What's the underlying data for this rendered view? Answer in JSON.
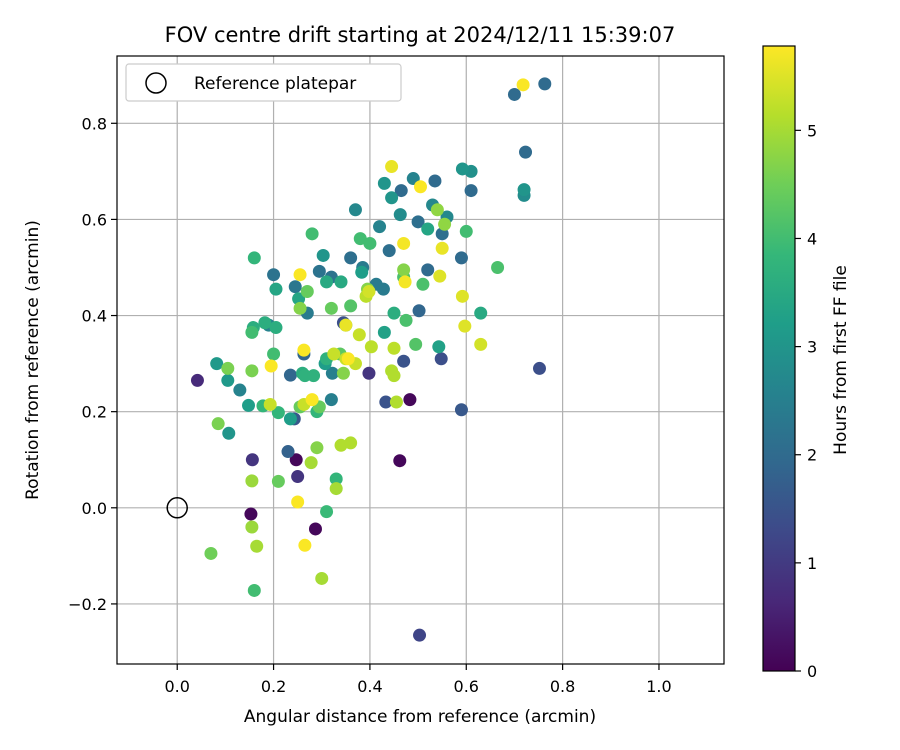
{
  "chart_data": {
    "type": "scatter",
    "title": "FOV centre drift starting at 2024/12/11 15:39:07",
    "xlabel": "Angular distance from reference (arcmin)",
    "ylabel": "Rotation from reference (arcmin)",
    "xlim": [
      -0.125,
      1.135
    ],
    "ylim": [
      -0.325,
      0.94
    ],
    "x_ticks": [
      0.0,
      0.2,
      0.4,
      0.6,
      0.8,
      1.0
    ],
    "x_tick_labels": [
      "0.0",
      "0.2",
      "0.4",
      "0.6",
      "0.8",
      "1.0"
    ],
    "y_ticks": [
      -0.2,
      0.0,
      0.2,
      0.4,
      0.6,
      0.8
    ],
    "y_tick_labels": [
      "−0.2",
      "0.0",
      "0.2",
      "0.4",
      "0.6",
      "0.8"
    ],
    "grid": true,
    "legend": {
      "position": "top-left",
      "entries": [
        "Reference platepar"
      ]
    },
    "reference_point": {
      "x": 0.0,
      "y": 0.0
    },
    "colorbar": {
      "label": "Hours from first FF file",
      "range": [
        0,
        5.78
      ],
      "ticks": [
        0,
        1,
        2,
        3,
        4,
        5
      ],
      "tick_labels": [
        "0",
        "1",
        "2",
        "3",
        "4",
        "5"
      ],
      "colormap": "viridis"
    },
    "series": [
      {
        "values": [
          [
            0.042,
            0.265,
            0.7
          ],
          [
            0.153,
            -0.013,
            0.1
          ],
          [
            0.287,
            -0.044,
            0.1
          ],
          [
            0.247,
            0.1,
            0.1
          ],
          [
            0.483,
            0.225,
            0.1
          ],
          [
            0.462,
            0.098,
            0.1
          ],
          [
            0.156,
            0.1,
            0.9
          ],
          [
            0.25,
            0.065,
            0.9
          ],
          [
            0.398,
            0.28,
            0.9
          ],
          [
            0.503,
            -0.265,
            1.2
          ],
          [
            0.752,
            0.29,
            1.4
          ],
          [
            0.548,
            0.31,
            1.4
          ],
          [
            0.345,
            0.385,
            1.4
          ],
          [
            0.47,
            0.305,
            1.5
          ],
          [
            0.433,
            0.22,
            1.5
          ],
          [
            0.59,
            0.204,
            1.6
          ],
          [
            0.243,
            0.185,
            1.6
          ],
          [
            0.23,
            0.117,
            1.8
          ],
          [
            0.235,
            0.276,
            1.9
          ],
          [
            0.263,
            0.32,
            1.9
          ],
          [
            0.502,
            0.41,
            1.9
          ],
          [
            0.52,
            0.495,
            2.0
          ],
          [
            0.61,
            0.66,
            2.0
          ],
          [
            0.535,
            0.68,
            2.0
          ],
          [
            0.465,
            0.66,
            2.0
          ],
          [
            0.7,
            0.86,
            2.0
          ],
          [
            0.763,
            0.882,
            2.0
          ],
          [
            0.723,
            0.74,
            2.0
          ],
          [
            0.59,
            0.52,
            2.0
          ],
          [
            0.55,
            0.57,
            2.1
          ],
          [
            0.5,
            0.595,
            2.1
          ],
          [
            0.44,
            0.535,
            2.1
          ],
          [
            0.36,
            0.52,
            2.1
          ],
          [
            0.32,
            0.48,
            2.2
          ],
          [
            0.295,
            0.492,
            2.2
          ],
          [
            0.2,
            0.485,
            2.2
          ],
          [
            0.245,
            0.46,
            2.3
          ],
          [
            0.413,
            0.465,
            2.4
          ],
          [
            0.428,
            0.455,
            2.4
          ],
          [
            0.385,
            0.5,
            2.4
          ],
          [
            0.27,
            0.405,
            2.4
          ],
          [
            0.322,
            0.28,
            2.5
          ],
          [
            0.32,
            0.225,
            2.5
          ],
          [
            0.13,
            0.245,
            2.6
          ],
          [
            0.19,
            0.38,
            2.6
          ],
          [
            0.42,
            0.585,
            2.6
          ],
          [
            0.49,
            0.685,
            2.6
          ],
          [
            0.56,
            0.605,
            2.7
          ],
          [
            0.37,
            0.62,
            2.7
          ],
          [
            0.53,
            0.63,
            2.7
          ],
          [
            0.72,
            0.65,
            2.8
          ],
          [
            0.463,
            0.61,
            2.8
          ],
          [
            0.61,
            0.7,
            2.9
          ],
          [
            0.592,
            0.705,
            3.0
          ],
          [
            0.72,
            0.662,
            3.0
          ],
          [
            0.445,
            0.645,
            3.0
          ],
          [
            0.43,
            0.675,
            3.0
          ],
          [
            0.303,
            0.525,
            3.0
          ],
          [
            0.107,
            0.155,
            3.0
          ],
          [
            0.082,
            0.3,
            3.1
          ],
          [
            0.105,
            0.265,
            3.1
          ],
          [
            0.148,
            0.213,
            3.2
          ],
          [
            0.235,
            0.185,
            3.2
          ],
          [
            0.307,
            0.3,
            3.2
          ],
          [
            0.383,
            0.49,
            3.2
          ],
          [
            0.43,
            0.365,
            3.3
          ],
          [
            0.52,
            0.58,
            3.4
          ],
          [
            0.543,
            0.335,
            3.3
          ],
          [
            0.205,
            0.455,
            3.4
          ],
          [
            0.252,
            0.435,
            3.4
          ],
          [
            0.34,
            0.47,
            3.5
          ],
          [
            0.31,
            0.47,
            3.5
          ],
          [
            0.63,
            0.405,
            3.5
          ],
          [
            0.45,
            0.405,
            3.6
          ],
          [
            0.205,
            0.375,
            3.6
          ],
          [
            0.158,
            0.375,
            3.6
          ],
          [
            0.182,
            0.385,
            3.6
          ],
          [
            0.26,
            0.28,
            3.6
          ],
          [
            0.265,
            0.275,
            3.7
          ],
          [
            0.283,
            0.275,
            3.7
          ],
          [
            0.31,
            0.31,
            3.7
          ],
          [
            0.35,
            0.38,
            3.8
          ],
          [
            0.16,
            0.52,
            3.8
          ],
          [
            0.178,
            0.212,
            3.8
          ],
          [
            0.21,
            0.198,
            3.8
          ],
          [
            0.29,
            0.2,
            3.8
          ],
          [
            0.33,
            0.06,
            3.8
          ],
          [
            0.31,
            -0.008,
            3.9
          ],
          [
            0.16,
            -0.172,
            4.0
          ],
          [
            0.155,
            0.365,
            4.0
          ],
          [
            0.2,
            0.32,
            4.0
          ],
          [
            0.28,
            0.57,
            4.0
          ],
          [
            0.38,
            0.56,
            4.0
          ],
          [
            0.4,
            0.55,
            4.0
          ],
          [
            0.6,
            0.575,
            4.0
          ],
          [
            0.665,
            0.5,
            4.1
          ],
          [
            0.47,
            0.48,
            4.1
          ],
          [
            0.51,
            0.465,
            4.1
          ],
          [
            0.475,
            0.39,
            4.1
          ],
          [
            0.495,
            0.34,
            4.2
          ],
          [
            0.36,
            0.42,
            4.2
          ],
          [
            0.338,
            0.32,
            4.3
          ],
          [
            0.32,
            0.415,
            4.4
          ],
          [
            0.27,
            0.45,
            4.4
          ],
          [
            0.255,
            0.21,
            4.4
          ],
          [
            0.295,
            0.21,
            4.4
          ],
          [
            0.21,
            0.055,
            4.4
          ],
          [
            0.07,
            -0.095,
            4.5
          ],
          [
            0.085,
            0.175,
            4.6
          ],
          [
            0.105,
            0.29,
            4.6
          ],
          [
            0.155,
            0.285,
            4.6
          ],
          [
            0.255,
            0.415,
            4.7
          ],
          [
            0.29,
            0.125,
            4.7
          ],
          [
            0.345,
            0.28,
            4.7
          ],
          [
            0.395,
            0.455,
            4.7
          ],
          [
            0.47,
            0.495,
            4.7
          ],
          [
            0.54,
            0.62,
            4.8
          ],
          [
            0.555,
            0.59,
            4.8
          ],
          [
            0.155,
            0.056,
            4.9
          ],
          [
            0.155,
            -0.04,
            4.9
          ],
          [
            0.165,
            -0.08,
            5.0
          ],
          [
            0.3,
            -0.147,
            5.0
          ],
          [
            0.278,
            0.094,
            5.0
          ],
          [
            0.33,
            0.04,
            5.0
          ],
          [
            0.34,
            0.13,
            5.1
          ],
          [
            0.36,
            0.135,
            5.1
          ],
          [
            0.445,
            0.285,
            5.1
          ],
          [
            0.45,
            0.275,
            5.1
          ],
          [
            0.455,
            0.22,
            5.1
          ],
          [
            0.403,
            0.335,
            5.2
          ],
          [
            0.45,
            0.332,
            5.2
          ],
          [
            0.392,
            0.44,
            5.2
          ],
          [
            0.37,
            0.3,
            5.3
          ],
          [
            0.35,
            0.31,
            5.3
          ],
          [
            0.325,
            0.32,
            5.3
          ],
          [
            0.193,
            0.215,
            5.3
          ],
          [
            0.263,
            0.215,
            5.3
          ],
          [
            0.378,
            0.36,
            5.3
          ],
          [
            0.398,
            0.45,
            5.4
          ],
          [
            0.63,
            0.34,
            5.4
          ],
          [
            0.545,
            0.482,
            5.5
          ],
          [
            0.592,
            0.44,
            5.5
          ],
          [
            0.597,
            0.378,
            5.5
          ],
          [
            0.445,
            0.71,
            5.6
          ],
          [
            0.55,
            0.54,
            5.6
          ],
          [
            0.35,
            0.38,
            5.6
          ],
          [
            0.47,
            0.55,
            5.7
          ],
          [
            0.473,
            0.47,
            5.7
          ],
          [
            0.505,
            0.668,
            5.75
          ],
          [
            0.718,
            0.88,
            5.75
          ],
          [
            0.255,
            0.485,
            5.75
          ],
          [
            0.263,
            0.328,
            5.75
          ],
          [
            0.195,
            0.295,
            5.75
          ],
          [
            0.28,
            0.225,
            5.75
          ],
          [
            0.25,
            0.012,
            5.75
          ],
          [
            0.265,
            -0.078,
            5.75
          ],
          [
            0.355,
            0.31,
            5.75
          ]
        ]
      }
    ]
  }
}
